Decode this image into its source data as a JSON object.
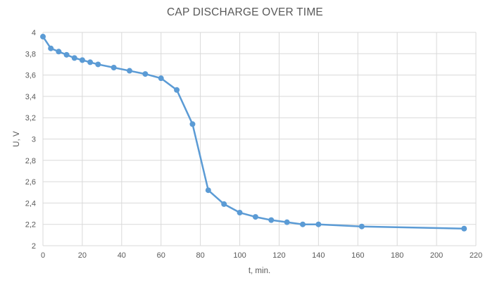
{
  "chart_data": {
    "type": "line",
    "title": "CAP DISCHARGE OVER TIME",
    "xlabel": "t, min.",
    "ylabel": "U, V",
    "xlim": [
      0,
      220
    ],
    "ylim": [
      2,
      4
    ],
    "x_ticks": [
      "0",
      "20",
      "40",
      "60",
      "80",
      "100",
      "120",
      "140",
      "160",
      "180",
      "200",
      "220"
    ],
    "y_ticks": [
      "2",
      "2,2",
      "2,4",
      "2,6",
      "2,8",
      "3",
      "3,2",
      "3,4",
      "3,6",
      "3,8",
      "4"
    ],
    "grid": "vertical and horizontal",
    "legend": "none",
    "series": [
      {
        "color": "#5b9bd5",
        "x": [
          0,
          4,
          8,
          12,
          16,
          20,
          24,
          28,
          36,
          44,
          52,
          60,
          68,
          76,
          84,
          92,
          100,
          108,
          116,
          124,
          132,
          140,
          162,
          214
        ],
        "y": [
          3.96,
          3.85,
          3.82,
          3.79,
          3.76,
          3.74,
          3.72,
          3.7,
          3.67,
          3.64,
          3.61,
          3.57,
          3.46,
          3.14,
          2.52,
          2.39,
          2.31,
          2.27,
          2.24,
          2.22,
          2.2,
          2.2,
          2.18,
          2.16
        ]
      }
    ]
  }
}
